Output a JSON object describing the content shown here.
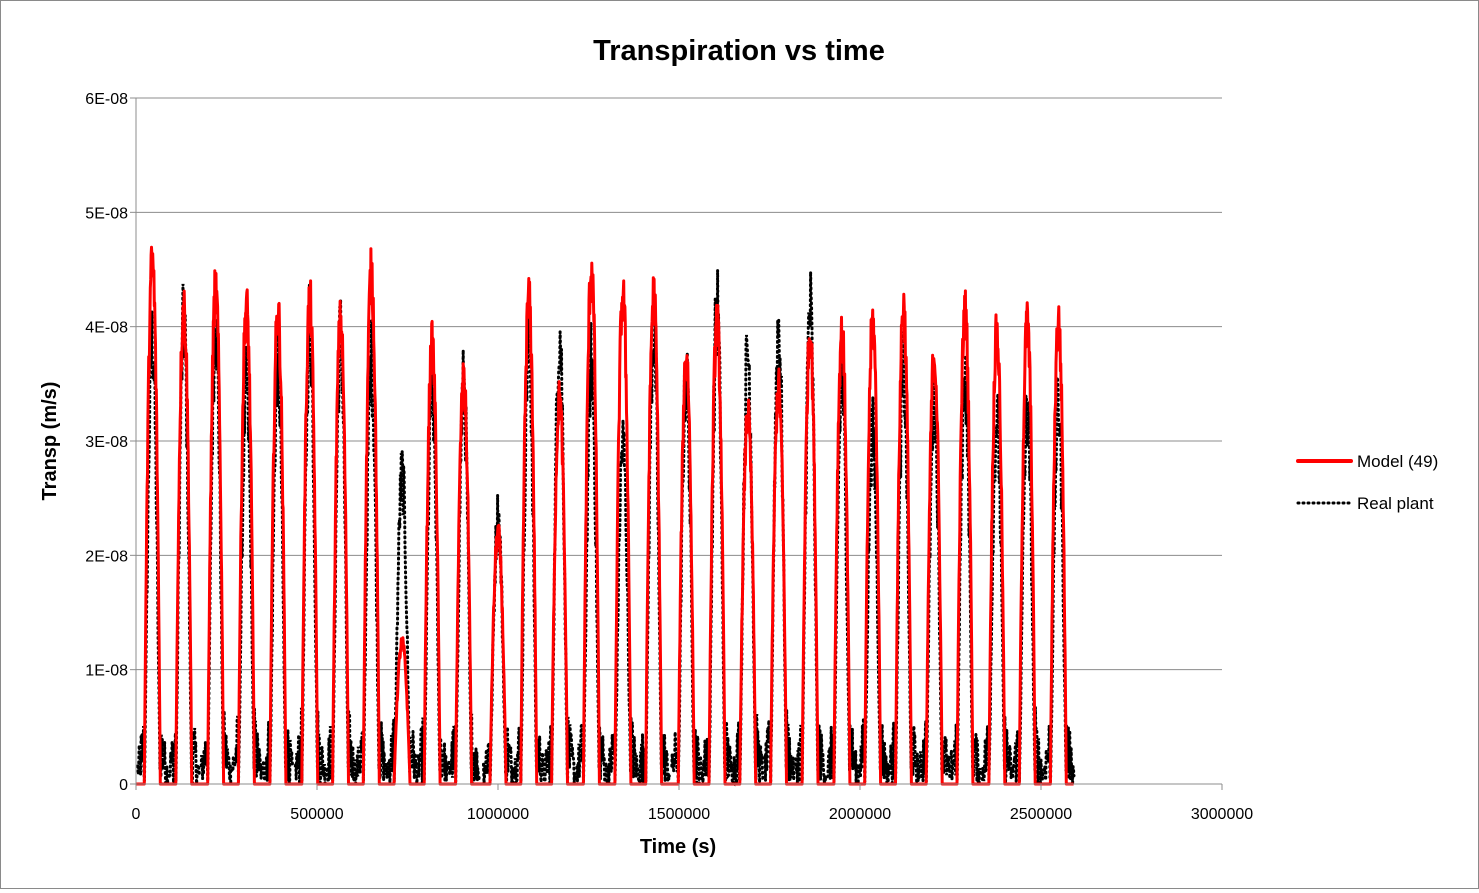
{
  "chart_data": {
    "type": "line",
    "title": "Transpiration vs time",
    "xlabel": "Time (s)",
    "ylabel": "Transp (m/s)",
    "xlim": [
      0,
      3000000
    ],
    "ylim": [
      0,
      6e-08
    ],
    "x_ticks": [
      {
        "value": 0,
        "label": "0"
      },
      {
        "value": 500000,
        "label": "500000"
      },
      {
        "value": 1000000,
        "label": "1000000"
      },
      {
        "value": 1500000,
        "label": "1500000"
      },
      {
        "value": 2000000,
        "label": "2000000"
      },
      {
        "value": 2500000,
        "label": "2500000"
      },
      {
        "value": 3000000,
        "label": "3000000"
      }
    ],
    "y_ticks": [
      {
        "value": 0,
        "label": "0"
      },
      {
        "value": 1e-08,
        "label": "1E-08"
      },
      {
        "value": 2e-08,
        "label": "2E-08"
      },
      {
        "value": 3e-08,
        "label": "3E-08"
      },
      {
        "value": 4e-08,
        "label": "4E-08"
      },
      {
        "value": 5e-08,
        "label": "5E-08"
      },
      {
        "value": 6e-08,
        "label": "6E-08"
      }
    ],
    "grid": "horizontal",
    "legend_position": "right",
    "series": [
      {
        "name": "Model (49)",
        "color": "#ff0000",
        "style": "solid",
        "day_peaks_x": [
          45000,
          132000,
          220000,
          305000,
          392000,
          480000,
          565000,
          650000,
          735000,
          818000,
          905000,
          1000000,
          1085000,
          1170000,
          1258000,
          1345000,
          1430000,
          1520000,
          1605000,
          1690000,
          1775000,
          1862000,
          1950000,
          2035000,
          2120000,
          2205000,
          2290000,
          2378000,
          2462000,
          2548000
        ],
        "day_peaks_y": [
          4.8e-08,
          4.4e-08,
          4.55e-08,
          4.4e-08,
          4.35e-08,
          4.45e-08,
          4.25e-08,
          4.7e-08,
          1.3e-08,
          4.05e-08,
          3.7e-08,
          2.3e-08,
          4.45e-08,
          3.55e-08,
          4.75e-08,
          4.5e-08,
          4.5e-08,
          3.95e-08,
          4.25e-08,
          3.4e-08,
          3.65e-08,
          4.15e-08,
          4.15e-08,
          4.25e-08,
          4.4e-08,
          3.95e-08,
          4.35e-08,
          4.15e-08,
          4.25e-08,
          4.25e-08
        ]
      },
      {
        "name": "Real plant",
        "color": "#000000",
        "style": "dotted",
        "day_peaks_x": [
          45000,
          132000,
          220000,
          305000,
          392000,
          480000,
          565000,
          650000,
          735000,
          818000,
          905000,
          1000000,
          1085000,
          1170000,
          1258000,
          1345000,
          1430000,
          1520000,
          1605000,
          1690000,
          1775000,
          1862000,
          1950000,
          2035000,
          2120000,
          2205000,
          2290000,
          2378000,
          2462000,
          2548000
        ],
        "day_peaks_y": [
          4.3e-08,
          4.45e-08,
          4.5e-08,
          3.85e-08,
          4.1e-08,
          4.5e-08,
          4.35e-08,
          4.1e-08,
          3e-08,
          3.8e-08,
          3.85e-08,
          2.6e-08,
          4.3e-08,
          4.4e-08,
          4.1e-08,
          3.3e-08,
          4.4e-08,
          3.95e-08,
          4.6e-08,
          4.2e-08,
          4.45e-08,
          4.6e-08,
          3.9e-08,
          3.4e-08,
          4e-08,
          3.75e-08,
          4e-08,
          3.55e-08,
          3.6e-08,
          3.7e-08
        ]
      }
    ]
  }
}
